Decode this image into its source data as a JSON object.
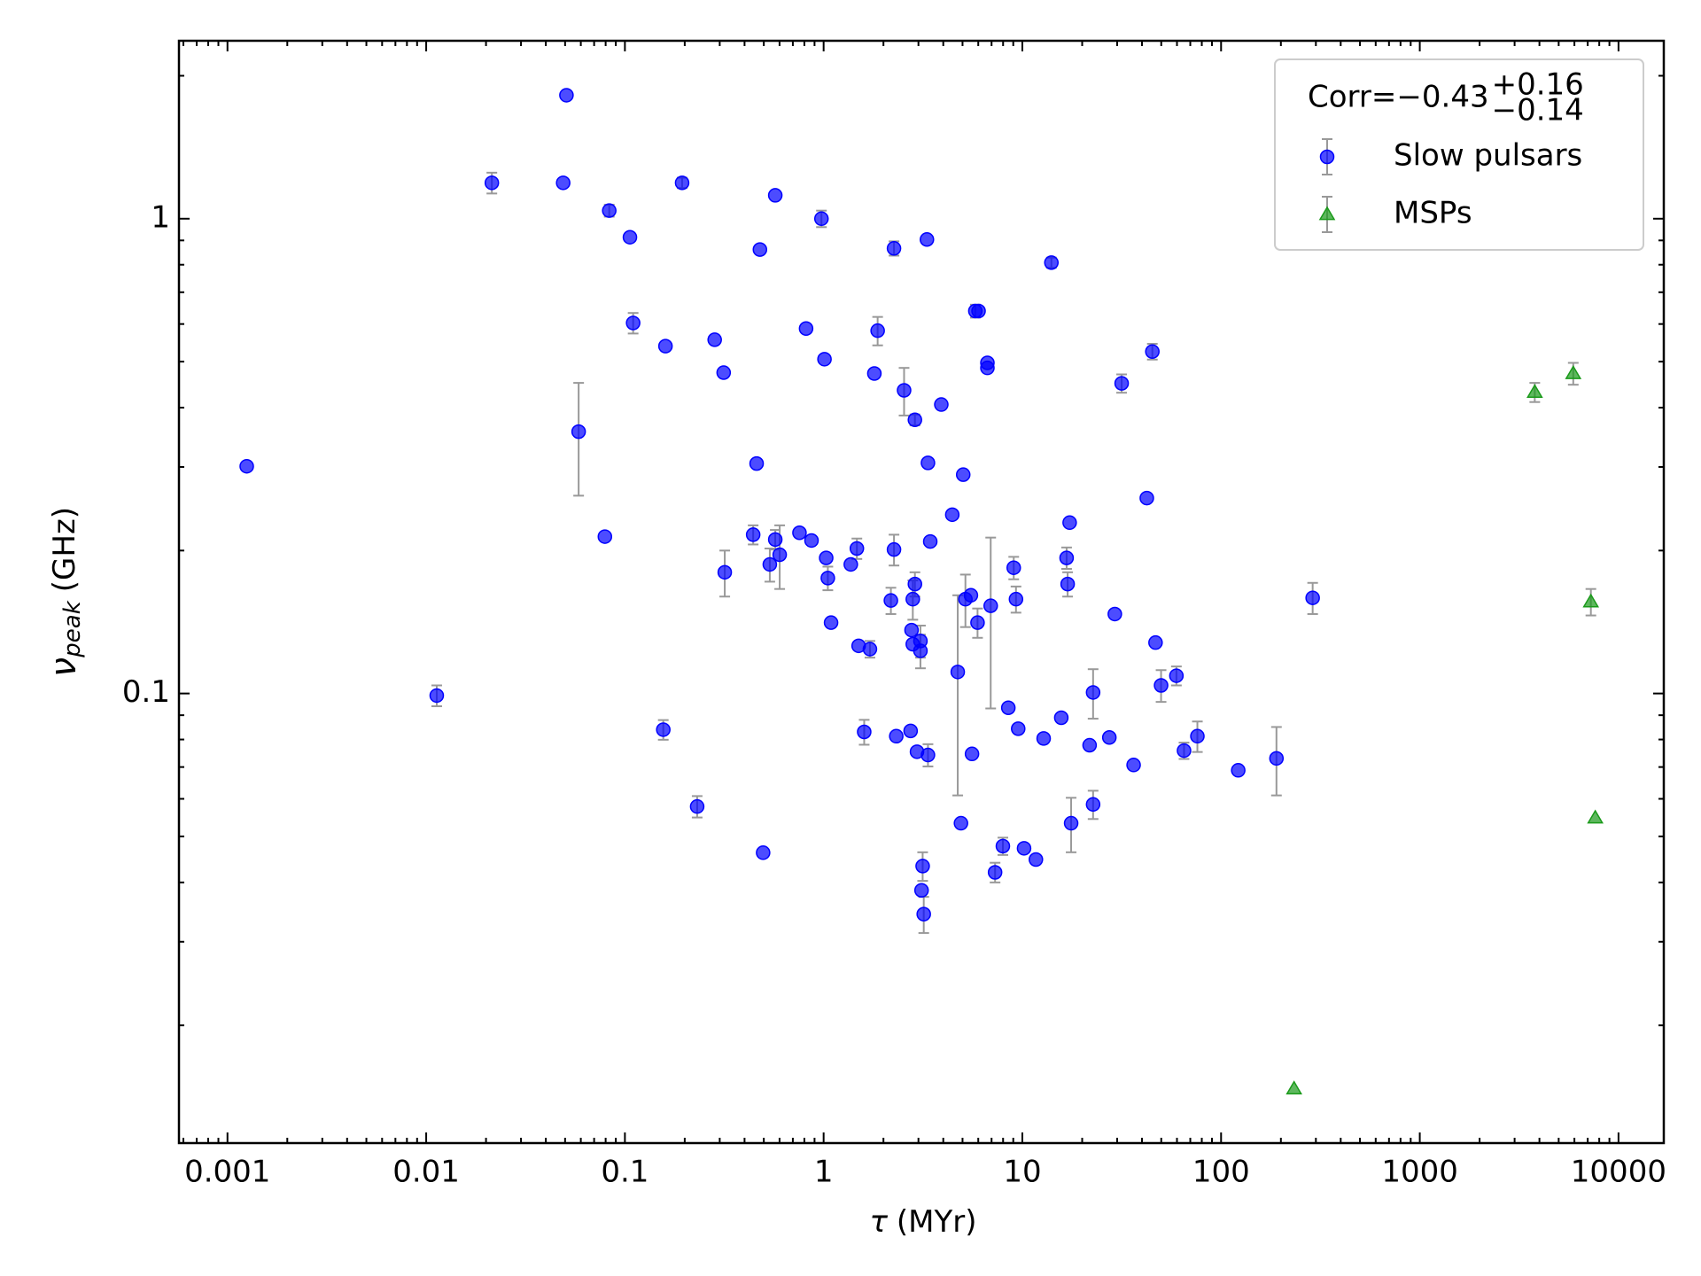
{
  "chart_data": {
    "type": "scatter",
    "x_label": {
      "symbol": "τ",
      "unit": "(MYr)"
    },
    "y_label": {
      "symbol": "ν",
      "subscript": "peak",
      "unit": "(GHz)"
    },
    "x_log": true,
    "y_log": true,
    "xlim": [
      0.00057,
      16900
    ],
    "ylim": [
      0.0113,
      2.37
    ],
    "xticks": [
      0.001,
      0.01,
      0.1,
      1,
      10,
      100,
      1000,
      10000
    ],
    "yticks": [
      0.1,
      1
    ],
    "legend_title": {
      "text": "Corr=−0.43",
      "sup": "+0.16",
      "sub": "−0.14"
    },
    "legend_position": "upper right",
    "error_color": "#999999",
    "series": [
      {
        "name": "Slow pulsars",
        "color": "#0000ff",
        "marker": "circle",
        "x": [
          0.00125,
          0.0113,
          0.0214,
          0.0489,
          0.0508,
          0.0585,
          0.0793,
          0.0834,
          0.106,
          0.11,
          0.156,
          0.16,
          0.194,
          0.231,
          0.283,
          0.314,
          0.318,
          0.442,
          0.46,
          0.478,
          0.496,
          0.536,
          0.571,
          0.571,
          0.601,
          0.756,
          0.816,
          0.869,
          0.975,
          1.01,
          1.03,
          1.05,
          1.09,
          1.37,
          1.47,
          1.5,
          1.6,
          1.71,
          1.8,
          1.87,
          2.18,
          2.26,
          2.26,
          2.32,
          2.54,
          2.74,
          2.77,
          2.81,
          2.88,
          2.88,
          2.81,
          2.95,
          3.07,
          3.07,
          3.11,
          3.15,
          3.19,
          3.31,
          3.35,
          3.35,
          3.44,
          3.91,
          4.44,
          4.73,
          4.91,
          5.04,
          5.17,
          5.51,
          5.58,
          5.8,
          6.02,
          5.95,
          6.67,
          6.67,
          6.93,
          7.29,
          7.98,
          8.5,
          9.05,
          9.29,
          9.53,
          10.2,
          11.7,
          12.8,
          14.0,
          15.7,
          16.7,
          16.9,
          17.3,
          17.6,
          21.8,
          22.7,
          22.7,
          27.4,
          29.2,
          31.6,
          36.3,
          42.3,
          45.1,
          46.8,
          49.9,
          59.6,
          65.1,
          76.0,
          122,
          190,
          289
        ],
        "values": [
          0.301,
          0.099,
          1.19,
          1.19,
          1.82,
          0.356,
          0.214,
          1.04,
          0.914,
          0.603,
          0.0839,
          0.539,
          1.19,
          0.0578,
          0.556,
          0.474,
          0.18,
          0.216,
          0.305,
          0.861,
          0.0462,
          0.187,
          1.12,
          0.211,
          0.196,
          0.218,
          0.587,
          0.21,
          1.0,
          0.506,
          0.193,
          0.175,
          0.141,
          0.187,
          0.202,
          0.126,
          0.083,
          0.124,
          0.472,
          0.581,
          0.157,
          0.866,
          0.201,
          0.0813,
          0.435,
          0.0834,
          0.136,
          0.158,
          0.377,
          0.17,
          0.127,
          0.0754,
          0.129,
          0.123,
          0.0385,
          0.0433,
          0.0343,
          0.904,
          0.306,
          0.0742,
          0.209,
          0.406,
          0.238,
          0.111,
          0.0533,
          0.289,
          0.158,
          0.161,
          0.0746,
          0.639,
          0.639,
          0.141,
          0.497,
          0.485,
          0.153,
          0.042,
          0.0477,
          0.0933,
          0.184,
          0.158,
          0.0843,
          0.0472,
          0.0447,
          0.0804,
          0.808,
          0.0889,
          0.193,
          0.17,
          0.229,
          0.0533,
          0.0778,
          0.1005,
          0.0584,
          0.0808,
          0.147,
          0.45,
          0.0707,
          0.258,
          0.525,
          0.128,
          0.104,
          0.109,
          0.0758,
          0.0813,
          0.0689,
          0.073,
          0.159
        ],
        "errors": [
          null,
          0.005,
          0.06,
          null,
          null,
          0.095,
          null,
          0.03,
          null,
          0.03,
          0.004,
          null,
          0.03,
          0.003,
          null,
          null,
          0.02,
          0.01,
          null,
          null,
          null,
          0.015,
          null,
          0.01,
          0.03,
          null,
          null,
          null,
          0.04,
          null,
          null,
          0.01,
          null,
          null,
          0.01,
          null,
          0.005,
          0.005,
          null,
          0.04,
          0.01,
          0.03,
          0.015,
          null,
          0.05,
          null,
          null,
          0.015,
          0.01,
          0.01,
          null,
          null,
          0.01,
          0.01,
          null,
          0.003,
          0.003,
          null,
          null,
          0.004,
          null,
          null,
          null,
          0.05,
          null,
          null,
          0.02,
          null,
          null,
          0.02,
          null,
          0.01,
          null,
          null,
          0.06,
          0.002,
          0.002,
          null,
          0.01,
          0.01,
          null,
          null,
          null,
          null,
          0.02,
          null,
          0.01,
          0.01,
          null,
          0.007,
          null,
          0.012,
          0.004,
          null,
          null,
          0.02,
          null,
          null,
          0.02,
          null,
          0.008,
          0.005,
          0.003,
          0.006,
          null,
          0.012,
          0.012
        ]
      },
      {
        "name": "MSPs",
        "color": "#1a9a1a",
        "marker": "triangle",
        "x": [
          233,
          3790,
          5920,
          7260,
          7640
        ],
        "values": [
          0.0147,
          0.431,
          0.472,
          0.156,
          0.0547
        ],
        "errors": [
          null,
          0.02,
          0.025,
          0.01,
          null
        ]
      }
    ]
  }
}
